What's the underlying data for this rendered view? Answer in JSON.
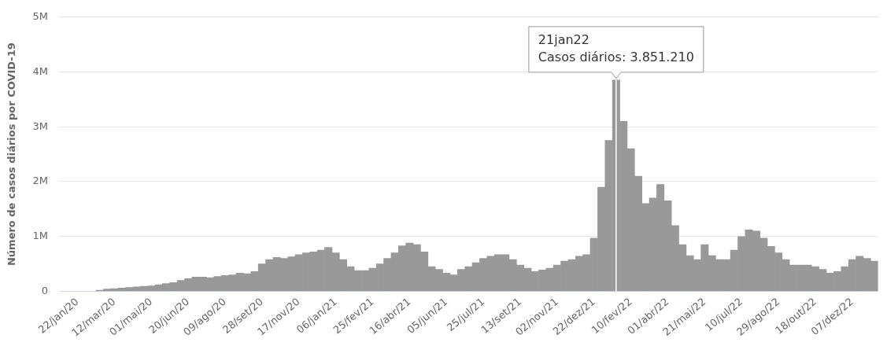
{
  "chart_data": {
    "type": "bar",
    "ylabel": "Número de casos diários por COVID-19",
    "categories": [
      null,
      null,
      "22/jan/20",
      null,
      null,
      null,
      null,
      "12/mar/20",
      null,
      null,
      null,
      null,
      "01/mai/20",
      null,
      null,
      null,
      null,
      "20/jun/20",
      null,
      null,
      null,
      null,
      "09/ago/20",
      null,
      null,
      null,
      null,
      "28/set/20",
      null,
      null,
      null,
      null,
      "17/nov/20",
      null,
      null,
      null,
      null,
      "06/jan/21",
      null,
      null,
      null,
      null,
      "25/fev/21",
      null,
      null,
      null,
      null,
      "16/abr/21",
      null,
      null,
      null,
      null,
      "05/jun/21",
      null,
      null,
      null,
      null,
      "25/jul/21",
      null,
      null,
      null,
      null,
      "13/set/21",
      null,
      null,
      null,
      null,
      "02/nov/21",
      null,
      null,
      null,
      null,
      "22/dez/21",
      null,
      null,
      null,
      null,
      "10/fev/22",
      null,
      null,
      null,
      null,
      "01/abr/22",
      null,
      null,
      null,
      null,
      "21/mai/22",
      null,
      null,
      null,
      null,
      "10/jul/22",
      null,
      null,
      null,
      null,
      "29/ago/22",
      null,
      null,
      null,
      null,
      "18/out/22",
      null,
      null,
      null,
      null,
      "07/dez/22",
      null,
      null,
      null
    ],
    "values": [
      null,
      null,
      null,
      null,
      null,
      20000,
      40000,
      50000,
      60000,
      70000,
      80000,
      90000,
      100000,
      120000,
      140000,
      160000,
      200000,
      230000,
      260000,
      260000,
      250000,
      270000,
      290000,
      300000,
      330000,
      320000,
      360000,
      500000,
      580000,
      620000,
      600000,
      630000,
      670000,
      700000,
      720000,
      750000,
      800000,
      700000,
      580000,
      450000,
      380000,
      380000,
      420000,
      500000,
      600000,
      700000,
      830000,
      880000,
      850000,
      720000,
      450000,
      400000,
      330000,
      300000,
      400000,
      450000,
      520000,
      600000,
      640000,
      670000,
      670000,
      580000,
      480000,
      420000,
      360000,
      390000,
      420000,
      480000,
      550000,
      580000,
      640000,
      670000,
      970000,
      1900000,
      2750000,
      3851210,
      3100000,
      2600000,
      2100000,
      1600000,
      1700000,
      1950000,
      1650000,
      1200000,
      850000,
      650000,
      580000,
      850000,
      650000,
      580000,
      580000,
      750000,
      1000000,
      1120000,
      1100000,
      970000,
      820000,
      700000,
      580000,
      480000,
      480000,
      480000,
      450000,
      400000,
      330000,
      360000,
      450000,
      580000,
      640000,
      600000,
      550000
    ],
    "color": "#999999",
    "ylim": [
      0,
      5000000
    ],
    "yticks": [
      {
        "value": 0,
        "label": "0"
      },
      {
        "value": 1000000,
        "label": "1M"
      },
      {
        "value": 2000000,
        "label": "2M"
      },
      {
        "value": 3000000,
        "label": "3M"
      },
      {
        "value": 4000000,
        "label": "4M"
      },
      {
        "value": 5000000,
        "label": "5M"
      }
    ],
    "grid": "y",
    "annotations": [
      {
        "text": "21jan22\nCasos diários: 3.851.210",
        "y": 3851210
      }
    ]
  }
}
